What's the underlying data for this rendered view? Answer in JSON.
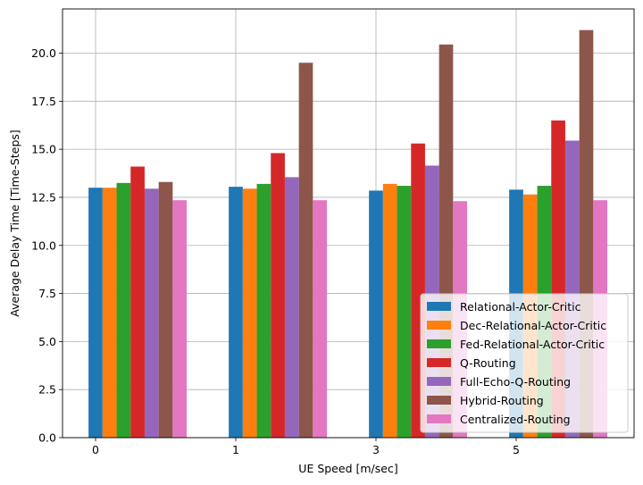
{
  "chart_data": {
    "type": "bar",
    "title": "",
    "xlabel": "UE Speed [m/sec]",
    "ylabel": "Average Delay Time [Time-Steps]",
    "categories": [
      "0",
      "1",
      "3",
      "5"
    ],
    "ylim": [
      0,
      22.3
    ],
    "yticks": [
      "0.0",
      "2.5",
      "5.0",
      "7.5",
      "10.0",
      "12.5",
      "15.0",
      "17.5",
      "20.0"
    ],
    "grid": true,
    "legend_position": "lower-right",
    "series": [
      {
        "name": "Relational-Actor-Critic",
        "color": "#1f77b4",
        "values": [
          13.0,
          13.05,
          12.85,
          12.9
        ]
      },
      {
        "name": "Dec-Relational-Actor-Critic",
        "color": "#ff7f0e",
        "values": [
          13.0,
          12.95,
          13.2,
          12.65
        ]
      },
      {
        "name": "Fed-Relational-Actor-Critic",
        "color": "#2ca02c",
        "values": [
          13.25,
          13.2,
          13.1,
          13.1
        ]
      },
      {
        "name": "Q-Routing",
        "color": "#d62728",
        "values": [
          14.1,
          14.8,
          15.3,
          16.5
        ]
      },
      {
        "name": "Full-Echo-Q-Routing",
        "color": "#9467bd",
        "values": [
          12.95,
          13.55,
          14.15,
          15.45
        ]
      },
      {
        "name": "Hybrid-Routing",
        "color": "#8c564b",
        "values": [
          13.3,
          19.5,
          20.45,
          21.2
        ]
      },
      {
        "name": "Centralized-Routing",
        "color": "#e377c2",
        "values": [
          12.35,
          12.35,
          12.3,
          12.35
        ]
      }
    ]
  }
}
